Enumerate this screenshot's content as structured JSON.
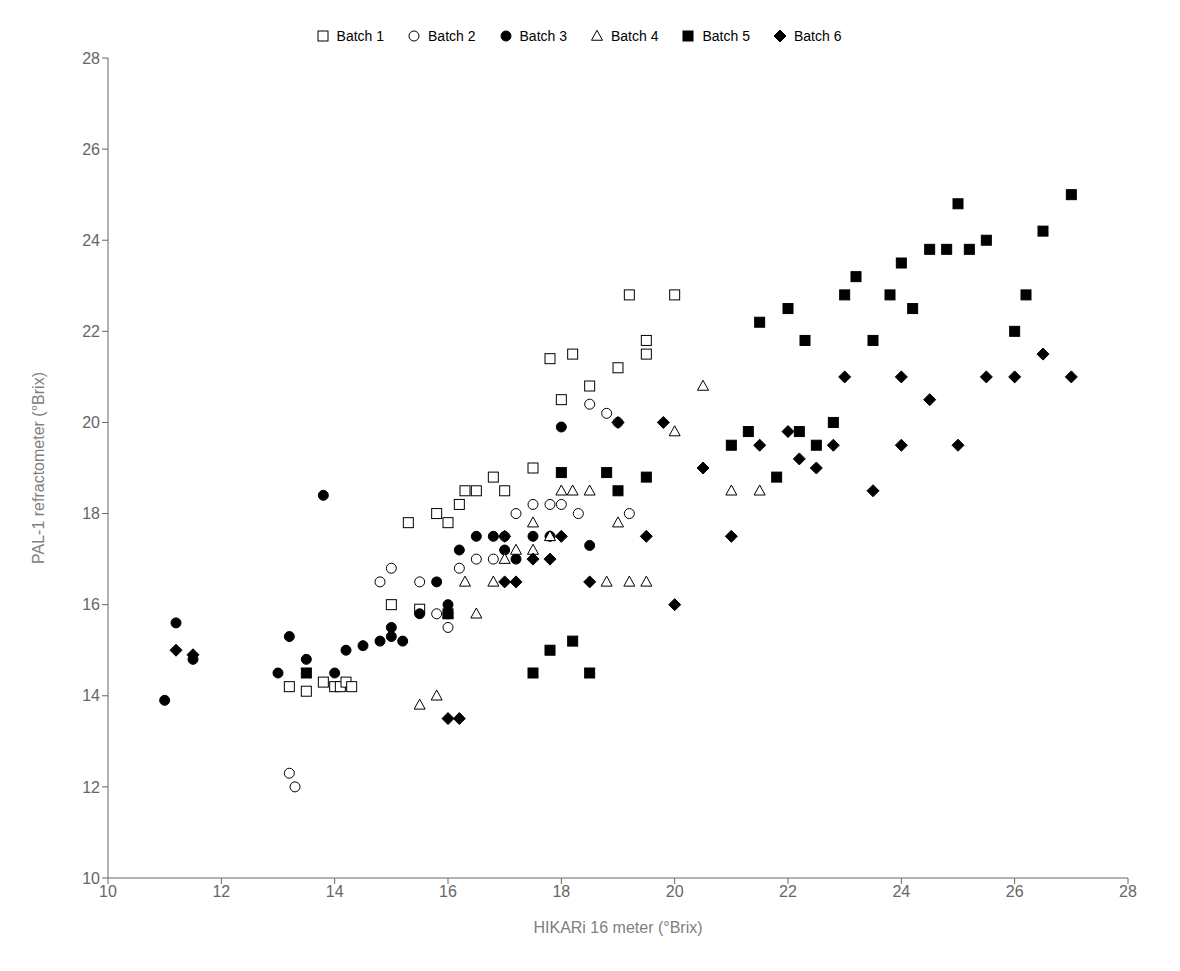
{
  "chart_data": {
    "type": "scatter",
    "xlabel": "HIKARi 16 meter (°Brix)",
    "ylabel": "PAL-1 refractometer (°Brix)",
    "xlim": [
      10,
      28
    ],
    "ylim": [
      10,
      28
    ],
    "xticks": [
      10,
      12,
      14,
      16,
      18,
      20,
      22,
      24,
      26,
      28
    ],
    "yticks": [
      10,
      12,
      14,
      16,
      18,
      20,
      22,
      24,
      26,
      28
    ],
    "grid": false,
    "legend": "top",
    "series": [
      {
        "name": "Batch 1",
        "marker": "open-square",
        "color": "black",
        "x": [
          13.2,
          13.5,
          13.8,
          14.0,
          14.1,
          14.2,
          14.3,
          15.0,
          15.3,
          15.5,
          15.8,
          16.0,
          16.2,
          16.3,
          16.5,
          16.8,
          17.0,
          17.5,
          17.8,
          18.0,
          18.2,
          18.5,
          19.0,
          19.2,
          19.5,
          19.5,
          20.0
        ],
        "y": [
          14.2,
          14.1,
          14.3,
          14.2,
          14.2,
          14.3,
          14.2,
          16.0,
          17.8,
          15.9,
          18.0,
          17.8,
          18.2,
          18.5,
          18.5,
          18.8,
          18.5,
          19.0,
          21.4,
          20.5,
          21.5,
          20.8,
          21.2,
          22.8,
          21.8,
          21.5,
          22.8
        ]
      },
      {
        "name": "Batch 2",
        "marker": "open-circle",
        "color": "black",
        "x": [
          13.2,
          13.3,
          14.8,
          15.0,
          15.5,
          15.8,
          16.0,
          16.2,
          16.5,
          16.8,
          17.0,
          17.2,
          17.5,
          17.8,
          18.0,
          18.3,
          18.5,
          18.8,
          19.0,
          19.2
        ],
        "y": [
          12.3,
          12.0,
          16.5,
          16.8,
          16.5,
          15.8,
          15.5,
          16.8,
          17.0,
          17.0,
          17.5,
          18.0,
          18.2,
          18.2,
          18.2,
          18.0,
          20.4,
          20.2,
          20.0,
          18.0
        ]
      },
      {
        "name": "Batch 3",
        "marker": "circle",
        "color": "black",
        "x": [
          11.0,
          11.2,
          11.5,
          13.0,
          13.2,
          13.5,
          13.8,
          14.0,
          14.2,
          14.5,
          14.8,
          15.0,
          15.0,
          15.2,
          15.5,
          15.8,
          16.0,
          16.0,
          16.2,
          16.5,
          16.8,
          17.0,
          17.2,
          17.5,
          17.8,
          18.0,
          18.5
        ],
        "y": [
          13.9,
          15.6,
          14.8,
          14.5,
          15.3,
          14.8,
          18.4,
          14.5,
          15.0,
          15.1,
          15.2,
          15.5,
          15.3,
          15.2,
          15.8,
          16.5,
          15.8,
          16.0,
          17.2,
          17.5,
          17.5,
          17.2,
          17.0,
          17.5,
          17.5,
          19.9,
          17.3
        ]
      },
      {
        "name": "Batch 4",
        "marker": "open-triangle",
        "color": "black",
        "x": [
          15.5,
          15.8,
          16.0,
          16.3,
          16.5,
          16.8,
          17.0,
          17.2,
          17.5,
          17.5,
          17.8,
          18.0,
          18.2,
          18.5,
          18.8,
          19.0,
          19.2,
          19.5,
          20.0,
          20.5,
          21.0,
          21.5
        ],
        "y": [
          13.8,
          14.0,
          15.8,
          16.5,
          15.8,
          16.5,
          17.0,
          17.2,
          17.2,
          17.8,
          17.5,
          18.5,
          18.5,
          18.5,
          16.5,
          17.8,
          16.5,
          16.5,
          19.8,
          20.8,
          18.5,
          18.5
        ]
      },
      {
        "name": "Batch 5",
        "marker": "square",
        "color": "black",
        "x": [
          13.5,
          16.0,
          17.5,
          17.8,
          18.0,
          18.2,
          18.5,
          18.8,
          19.0,
          19.5,
          21.0,
          21.3,
          21.5,
          21.8,
          22.0,
          22.2,
          22.3,
          22.5,
          22.8,
          23.0,
          23.2,
          23.5,
          23.8,
          24.0,
          24.2,
          24.5,
          24.8,
          25.0,
          25.2,
          25.5,
          26.0,
          26.2,
          26.5,
          27.0
        ],
        "y": [
          14.5,
          15.8,
          14.5,
          15.0,
          18.9,
          15.2,
          14.5,
          18.9,
          18.5,
          18.8,
          19.5,
          19.8,
          22.2,
          18.8,
          22.5,
          19.8,
          21.8,
          19.5,
          20.0,
          22.8,
          23.2,
          21.8,
          22.8,
          23.5,
          22.5,
          23.8,
          23.8,
          24.8,
          23.8,
          24.0,
          22.0,
          22.8,
          24.2,
          25.0
        ]
      },
      {
        "name": "Batch 6",
        "marker": "diamond",
        "color": "black",
        "x": [
          11.2,
          11.5,
          16.0,
          16.2,
          17.0,
          17.0,
          17.2,
          17.5,
          17.8,
          18.0,
          18.5,
          19.0,
          19.5,
          19.8,
          20.0,
          20.5,
          21.0,
          21.5,
          22.0,
          22.2,
          22.5,
          22.8,
          23.0,
          23.5,
          24.0,
          24.0,
          24.5,
          25.0,
          25.5,
          26.0,
          26.5,
          27.0
        ],
        "y": [
          15.0,
          14.9,
          13.5,
          13.5,
          17.5,
          16.5,
          16.5,
          17.0,
          17.0,
          17.5,
          16.5,
          20.0,
          17.5,
          20.0,
          16.0,
          19.0,
          17.5,
          19.5,
          19.8,
          19.2,
          19.0,
          19.5,
          21.0,
          18.5,
          21.0,
          19.5,
          20.5,
          19.5,
          21.0,
          21.0,
          21.5,
          21.0
        ]
      }
    ]
  }
}
